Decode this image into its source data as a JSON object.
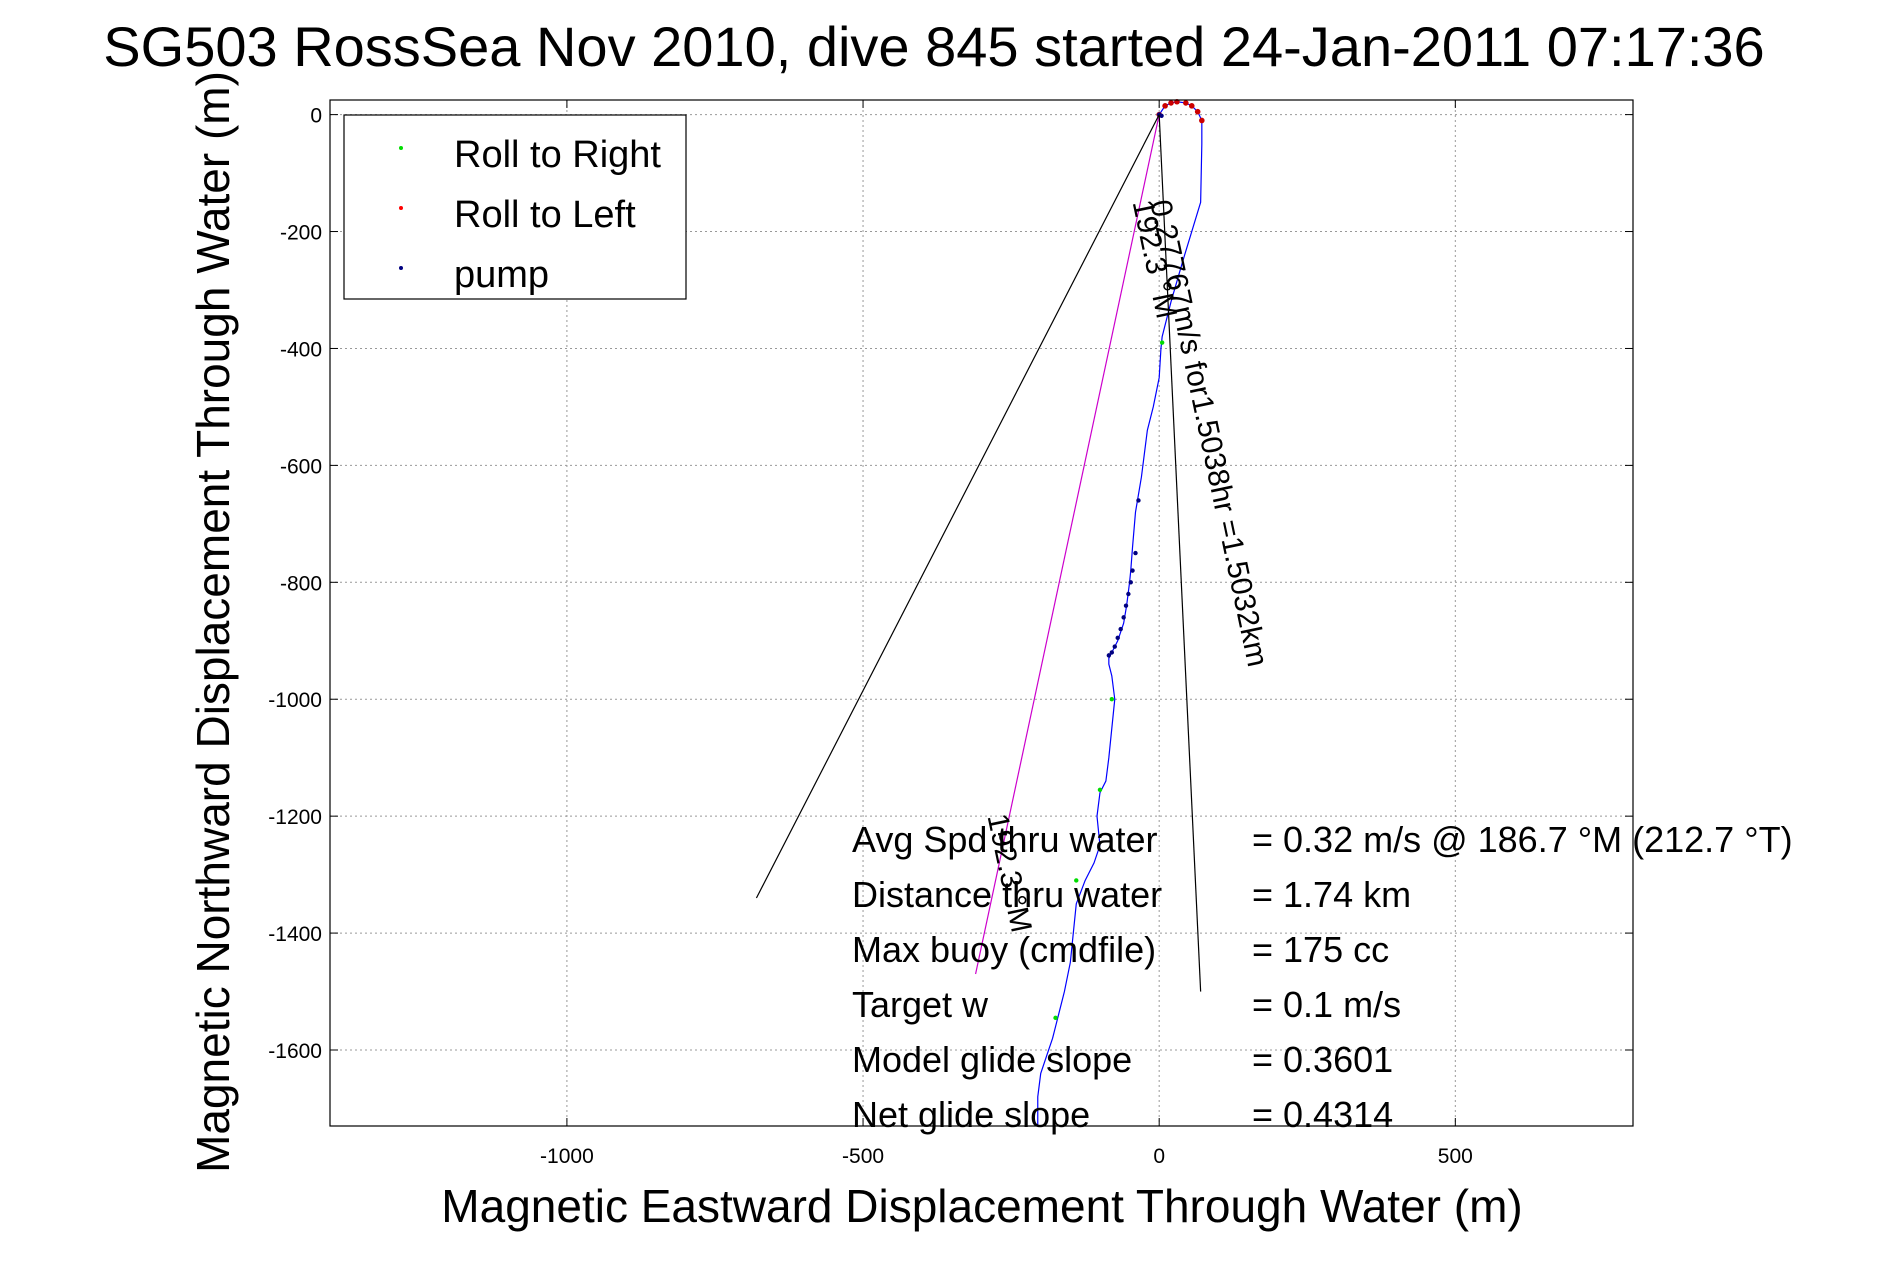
{
  "chart_data": {
    "type": "scatter",
    "title": "SG503 RossSea Nov 2010, dive 845 started 24-Jan-2011 07:17:36",
    "xlabel": "Magnetic Eastward Displacement Through Water (m)",
    "ylabel": "Magnetic Northward Displacement Through Water (m)",
    "xlim": [
      -1400,
      800
    ],
    "ylim": [
      -1730,
      25
    ],
    "xticks": [
      -1000,
      -500,
      0,
      500
    ],
    "xtick_labels": [
      "-1000",
      "-500",
      "0",
      "500"
    ],
    "yticks": [
      0,
      -200,
      -400,
      -600,
      -800,
      -1000,
      -1200,
      -1400,
      -1600
    ],
    "ytick_labels": [
      "0",
      "-200",
      "-400",
      "-600",
      "-800",
      "-1000",
      "-1200",
      "-1400",
      "-1600"
    ],
    "grid": true,
    "legend_position": "top-left",
    "legend": [
      {
        "label": "Roll to Right",
        "color": "#00dd00"
      },
      {
        "label": "Roll to Left",
        "color": "#ff0000"
      },
      {
        "label": "pump",
        "color": "#000080"
      }
    ],
    "series": [
      {
        "name": "track",
        "kind": "line",
        "color": "#0000ff",
        "x": [
          0,
          10,
          20,
          30,
          45,
          55,
          65,
          72,
          72,
          70,
          55,
          40,
          20,
          5,
          3,
          0,
          -10,
          -20,
          -25,
          -30,
          -40,
          -45,
          -48,
          -50,
          -55,
          -60,
          -70,
          -80,
          -85,
          -85,
          -80,
          -75,
          -80,
          -85,
          -90,
          -100,
          -105,
          -100,
          -110,
          -125,
          -140,
          -145,
          -150,
          -160,
          -170,
          -175,
          -180,
          -190,
          -200,
          -205,
          -205
        ],
        "y": [
          0,
          15,
          20,
          22,
          20,
          15,
          5,
          -10,
          -50,
          -150,
          -200,
          -250,
          -320,
          -380,
          -400,
          -450,
          -500,
          -540,
          -580,
          -620,
          -680,
          -740,
          -780,
          -800,
          -840,
          -870,
          -900,
          -920,
          -930,
          -940,
          -960,
          -1000,
          -1050,
          -1100,
          -1140,
          -1160,
          -1200,
          -1250,
          -1280,
          -1310,
          -1350,
          -1400,
          -1450,
          -1500,
          -1540,
          -1560,
          -1580,
          -1610,
          -1640,
          -1680,
          -1730
        ]
      },
      {
        "name": "Roll to Right",
        "kind": "points",
        "color": "#00dd00",
        "x": [
          5,
          -80,
          -100,
          -140,
          -175
        ],
        "y": [
          -390,
          -1000,
          -1155,
          -1310,
          -1545
        ]
      },
      {
        "name": "Roll to Left",
        "kind": "points",
        "color": "#cc0000",
        "x": [
          0,
          10,
          20,
          30,
          45,
          55,
          65,
          72
        ],
        "y": [
          0,
          15,
          20,
          22,
          20,
          15,
          5,
          -10
        ]
      },
      {
        "name": "pump",
        "kind": "points",
        "color": "#000080",
        "x": [
          0,
          4,
          -35,
          -40,
          -45,
          -48,
          -52,
          -56,
          -60,
          -65,
          -70,
          -75,
          -80,
          -85
        ],
        "y": [
          0,
          -2,
          -660,
          -750,
          -780,
          -800,
          -820,
          -840,
          -860,
          -880,
          -895,
          -910,
          -920,
          -925
        ]
      },
      {
        "name": "avg-velocity",
        "kind": "line",
        "color": "#cc00cc",
        "x": [
          0,
          -310
        ],
        "y": [
          0,
          -1470
        ]
      },
      {
        "name": "envelope-left",
        "kind": "line",
        "color": "#000000",
        "x": [
          0,
          -680
        ],
        "y": [
          0,
          -1340
        ]
      },
      {
        "name": "envelope-right",
        "kind": "line",
        "color": "#000000",
        "x": [
          0,
          70
        ],
        "y": [
          0,
          -1500
        ]
      }
    ],
    "annotations": [
      {
        "text": "0.27767m/s for1.5038hr =1.5032km",
        "x": -15,
        "y": -150,
        "angle": 78.1
      },
      {
        "text": "192.3 °M",
        "x": -45,
        "y": -150,
        "angle": 78.1
      },
      {
        "text": "192.3 °M",
        "x": -290,
        "y": -1200,
        "angle": 78.1
      }
    ],
    "stats": [
      {
        "label": "Avg Spd thru water",
        "value": "=  0.32 m/s @ 186.7 °M (212.7 °T)"
      },
      {
        "label": "Distance thru water",
        "value": "=  1.74 km"
      },
      {
        "label": "Max buoy (cmdfile)",
        "value": "= 175 cc"
      },
      {
        "label": "Target w",
        "value": "= 0.1 m/s"
      },
      {
        "label": "Model glide slope",
        "value": "= 0.3601"
      },
      {
        "label": "Net glide slope",
        "value": "= 0.4314"
      }
    ]
  }
}
